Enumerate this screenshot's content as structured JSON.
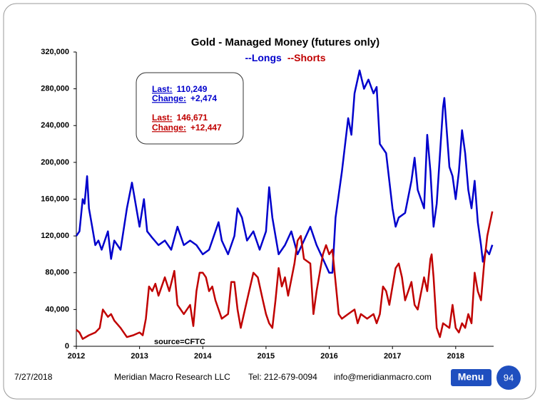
{
  "chart_data": {
    "type": "line",
    "title": "Gold - Managed Money (futures only)",
    "series": [
      {
        "name": "--Longs",
        "color": "#0000cc",
        "x": [
          2012.0,
          2012.05,
          2012.1,
          2012.13,
          2012.17,
          2012.2,
          2012.25,
          2012.3,
          2012.35,
          2012.4,
          2012.45,
          2012.5,
          2012.55,
          2012.6,
          2012.7,
          2012.8,
          2012.88,
          2012.95,
          2013.0,
          2013.07,
          2013.12,
          2013.2,
          2013.3,
          2013.4,
          2013.5,
          2013.6,
          2013.7,
          2013.8,
          2013.9,
          2014.0,
          2014.1,
          2014.2,
          2014.25,
          2014.3,
          2014.4,
          2014.5,
          2014.55,
          2014.62,
          2014.7,
          2014.8,
          2014.9,
          2015.0,
          2015.05,
          2015.1,
          2015.2,
          2015.3,
          2015.4,
          2015.5,
          2015.6,
          2015.7,
          2015.8,
          2015.9,
          2016.0,
          2016.05,
          2016.1,
          2016.2,
          2016.3,
          2016.35,
          2016.4,
          2016.48,
          2016.55,
          2016.62,
          2016.7,
          2016.75,
          2016.8,
          2016.9,
          2017.0,
          2017.05,
          2017.1,
          2017.2,
          2017.3,
          2017.35,
          2017.4,
          2017.5,
          2017.55,
          2017.6,
          2017.65,
          2017.7,
          2017.8,
          2017.82,
          2017.9,
          2017.95,
          2018.0,
          2018.05,
          2018.1,
          2018.15,
          2018.2,
          2018.25,
          2018.3,
          2018.35,
          2018.4,
          2018.43,
          2018.48,
          2018.53,
          2018.58
        ],
        "values": [
          120000,
          125000,
          160000,
          155000,
          185000,
          150000,
          130000,
          110000,
          115000,
          105000,
          115000,
          125000,
          95000,
          115000,
          105000,
          150000,
          178000,
          150000,
          130000,
          160000,
          125000,
          118000,
          110000,
          115000,
          105000,
          130000,
          110000,
          115000,
          110000,
          100000,
          105000,
          125000,
          135000,
          115000,
          100000,
          120000,
          150000,
          140000,
          115000,
          125000,
          105000,
          125000,
          173000,
          140000,
          100000,
          110000,
          125000,
          100000,
          115000,
          130000,
          110000,
          95000,
          80000,
          80000,
          140000,
          190000,
          248000,
          230000,
          275000,
          300000,
          280000,
          290000,
          275000,
          282000,
          220000,
          210000,
          150000,
          130000,
          140000,
          145000,
          180000,
          205000,
          170000,
          150000,
          230000,
          190000,
          130000,
          155000,
          260000,
          270000,
          195000,
          185000,
          160000,
          190000,
          235000,
          210000,
          170000,
          150000,
          180000,
          135000,
          110000,
          92000,
          105000,
          100000,
          110249
        ]
      },
      {
        "name": "--Shorts",
        "color": "#c00000",
        "x": [
          2012.0,
          2012.05,
          2012.1,
          2012.2,
          2012.3,
          2012.37,
          2012.42,
          2012.5,
          2012.55,
          2012.6,
          2012.7,
          2012.8,
          2012.9,
          2013.0,
          2013.05,
          2013.1,
          2013.15,
          2013.2,
          2013.25,
          2013.3,
          2013.4,
          2013.47,
          2013.55,
          2013.6,
          2013.7,
          2013.8,
          2013.85,
          2013.9,
          2013.95,
          2014.0,
          2014.05,
          2014.1,
          2014.15,
          2014.2,
          2014.3,
          2014.4,
          2014.45,
          2014.5,
          2014.55,
          2014.6,
          2014.7,
          2014.8,
          2014.87,
          2014.95,
          2015.0,
          2015.05,
          2015.1,
          2015.15,
          2015.2,
          2015.25,
          2015.3,
          2015.35,
          2015.45,
          2015.5,
          2015.55,
          2015.6,
          2015.7,
          2015.75,
          2015.8,
          2015.9,
          2015.95,
          2016.0,
          2016.05,
          2016.1,
          2016.15,
          2016.2,
          2016.3,
          2016.4,
          2016.45,
          2016.5,
          2016.6,
          2016.7,
          2016.75,
          2016.8,
          2016.85,
          2016.9,
          2016.95,
          2017.0,
          2017.05,
          2017.1,
          2017.15,
          2017.2,
          2017.3,
          2017.35,
          2017.4,
          2017.5,
          2017.55,
          2017.6,
          2017.62,
          2017.65,
          2017.7,
          2017.75,
          2017.8,
          2017.9,
          2017.95,
          2018.0,
          2018.05,
          2018.1,
          2018.15,
          2018.2,
          2018.25,
          2018.3,
          2018.35,
          2018.4,
          2018.45,
          2018.5,
          2018.58
        ],
        "values": [
          18000,
          15000,
          8000,
          12000,
          15000,
          20000,
          40000,
          32000,
          35000,
          28000,
          20000,
          10000,
          12000,
          15000,
          12000,
          30000,
          65000,
          60000,
          68000,
          55000,
          75000,
          60000,
          82000,
          45000,
          35000,
          45000,
          22000,
          60000,
          80000,
          80000,
          75000,
          60000,
          65000,
          50000,
          30000,
          35000,
          70000,
          70000,
          40000,
          20000,
          50000,
          80000,
          75000,
          50000,
          35000,
          25000,
          20000,
          50000,
          85000,
          65000,
          75000,
          55000,
          90000,
          115000,
          120000,
          95000,
          90000,
          35000,
          60000,
          100000,
          110000,
          100000,
          105000,
          70000,
          35000,
          30000,
          35000,
          40000,
          25000,
          35000,
          30000,
          35000,
          25000,
          35000,
          65000,
          60000,
          45000,
          65000,
          85000,
          90000,
          75000,
          50000,
          70000,
          45000,
          40000,
          75000,
          60000,
          95000,
          100000,
          75000,
          20000,
          10000,
          25000,
          20000,
          45000,
          20000,
          15000,
          25000,
          20000,
          35000,
          25000,
          80000,
          60000,
          50000,
          90000,
          120000,
          146671
        ]
      }
    ],
    "xlim": [
      2012,
      2018.6
    ],
    "xticks": [
      2012,
      2013,
      2014,
      2015,
      2016,
      2017,
      2018
    ],
    "ylim": [
      0,
      320000
    ],
    "yticks": [
      0,
      {
        "value": 40000,
        "label": "40,000"
      },
      {
        "value": 80000,
        "label": "80,000"
      },
      {
        "value": 120000,
        "label": "120,000"
      },
      {
        "value": 160000,
        "label": "160,000"
      },
      {
        "value": 200000,
        "label": "200,000"
      },
      {
        "value": 240000,
        "label": "240,000"
      },
      {
        "value": 280000,
        "label": "280,000"
      },
      {
        "value": 320000,
        "label": "320,000"
      }
    ],
    "info_box": [
      {
        "label": "Last:",
        "value": "110,249",
        "color": "#0000cc"
      },
      {
        "label": "Change:",
        "value": "+2,474",
        "color": "#0000cc"
      },
      {
        "label": "Last:",
        "value": "146,671",
        "color": "#c00000"
      },
      {
        "label": "Change:",
        "value": "+12,447",
        "color": "#c00000"
      }
    ],
    "source": "source=CFTC"
  },
  "footer": {
    "date": "7/27/2018",
    "company": "Meridian Macro Research LLC",
    "tel": "Tel: 212-679-0094",
    "email": "info@meridianmacro.com",
    "menu": "Menu",
    "page": "94"
  }
}
